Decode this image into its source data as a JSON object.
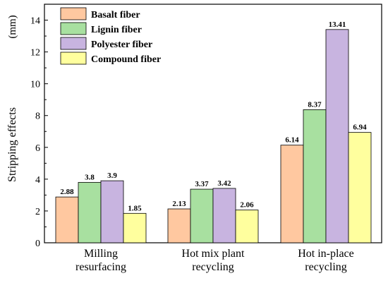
{
  "chart_data": {
    "type": "bar",
    "categories": [
      [
        "Milling",
        "resurfacing"
      ],
      [
        "Hot mix plant",
        "recycling"
      ],
      [
        "Hot in-place",
        "recycling"
      ]
    ],
    "series": [
      {
        "name": "Basalt fiber",
        "color": "#ffc8a0",
        "values": [
          2.88,
          2.13,
          6.14
        ],
        "labels": [
          "2.88",
          "2.13",
          "6.14"
        ]
      },
      {
        "name": "Lignin fiber",
        "color": "#a8e0a0",
        "values": [
          3.8,
          3.37,
          8.37
        ],
        "labels": [
          "3.8",
          "3.37",
          "8.37"
        ]
      },
      {
        "name": "Polyester fiber",
        "color": "#c8b4e0",
        "values": [
          3.9,
          3.42,
          13.41
        ],
        "labels": [
          "3.9",
          "3.42",
          "13.41"
        ]
      },
      {
        "name": "Compound fiber",
        "color": "#ffff9e",
        "values": [
          1.85,
          2.06,
          6.94
        ],
        "labels": [
          "1.85",
          "2.06",
          "6.94"
        ]
      }
    ],
    "ylabel": "Stripping effects",
    "unit": "(mm)",
    "ylim": [
      0,
      15
    ],
    "yticks": [
      0,
      2,
      4,
      6,
      8,
      10,
      12,
      14
    ],
    "legend_position": "top-left",
    "grid": false
  }
}
